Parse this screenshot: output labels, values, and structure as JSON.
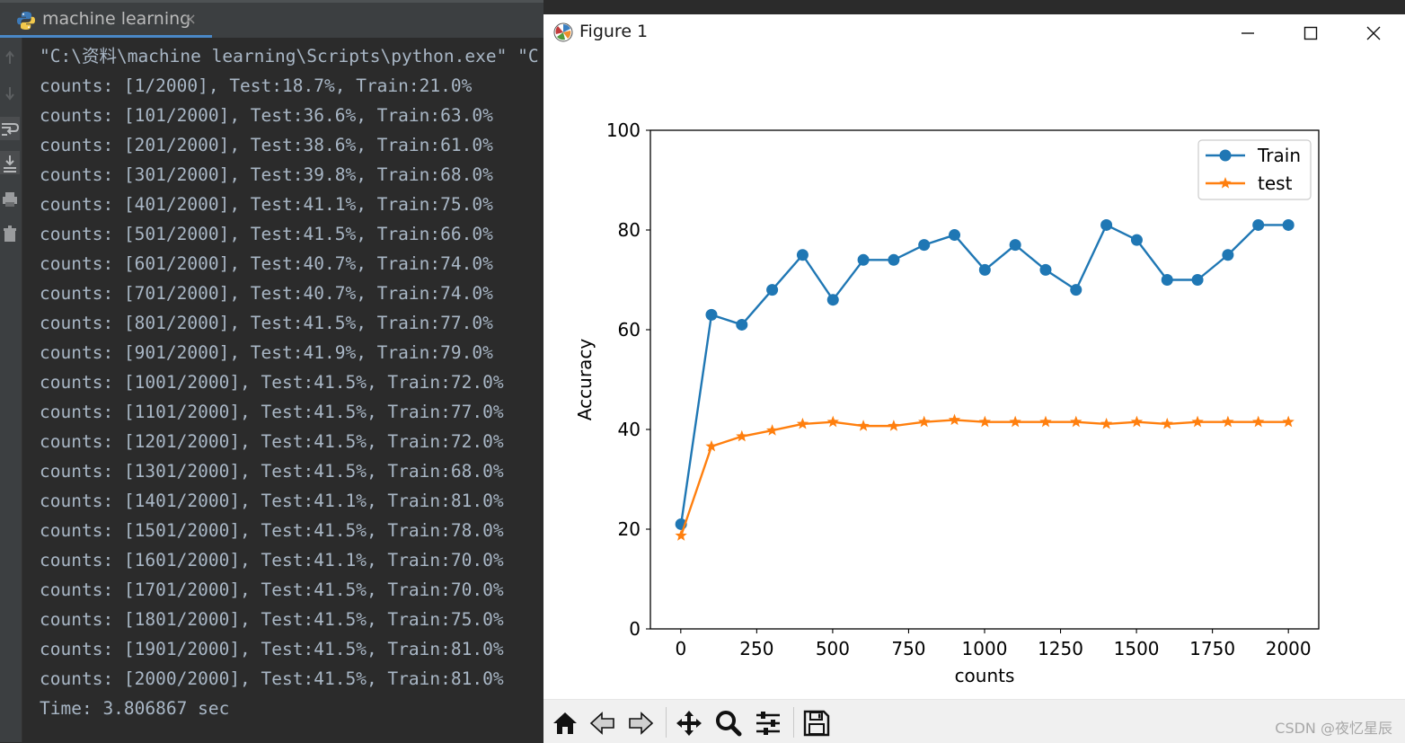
{
  "ide": {
    "tab_title": "machine learning",
    "close_glyph": "×",
    "console_lines": [
      "\"C:\\资料\\machine learning\\Scripts\\python.exe\" \"C",
      "counts: [1/2000], Test:18.7%, Train:21.0%",
      "counts: [101/2000], Test:36.6%, Train:63.0%",
      "counts: [201/2000], Test:38.6%, Train:61.0%",
      "counts: [301/2000], Test:39.8%, Train:68.0%",
      "counts: [401/2000], Test:41.1%, Train:75.0%",
      "counts: [501/2000], Test:41.5%, Train:66.0%",
      "counts: [601/2000], Test:40.7%, Train:74.0%",
      "counts: [701/2000], Test:40.7%, Train:74.0%",
      "counts: [801/2000], Test:41.5%, Train:77.0%",
      "counts: [901/2000], Test:41.9%, Train:79.0%",
      "counts: [1001/2000], Test:41.5%, Train:72.0%",
      "counts: [1101/2000], Test:41.5%, Train:77.0%",
      "counts: [1201/2000], Test:41.5%, Train:72.0%",
      "counts: [1301/2000], Test:41.5%, Train:68.0%",
      "counts: [1401/2000], Test:41.1%, Train:81.0%",
      "counts: [1501/2000], Test:41.5%, Train:78.0%",
      "counts: [1601/2000], Test:41.1%, Train:70.0%",
      "counts: [1701/2000], Test:41.5%, Train:70.0%",
      "counts: [1801/2000], Test:41.5%, Train:75.0%",
      "counts: [1901/2000], Test:41.5%, Train:81.0%",
      "counts: [2000/2000], Test:41.5%, Train:81.0%",
      "Time: 3.806867 sec"
    ],
    "gutter_icons": [
      "arrow-up-icon",
      "arrow-down-icon",
      "soft-wrap-icon",
      "scroll-to-end-icon",
      "print-icon",
      "trash-icon"
    ]
  },
  "figure": {
    "window_title": "Figure 1",
    "toolbar_icons": [
      "home-icon",
      "back-arrow-icon",
      "forward-arrow-icon",
      "pan-icon",
      "zoom-icon",
      "configure-subplots-icon",
      "save-icon"
    ],
    "watermark": "CSDN @夜忆星辰"
  },
  "colors": {
    "train": "#1f77b4",
    "test": "#ff7f0e",
    "console_text": "#a9b7c6",
    "ide_bg": "#2b2b2b",
    "tab_accent": "#4a88c7"
  },
  "chart_data": {
    "type": "line",
    "title": "",
    "xlabel": "counts",
    "ylabel": "Accuracy",
    "xlim": [
      -100,
      2100
    ],
    "ylim": [
      0,
      100
    ],
    "xticks": [
      0,
      250,
      500,
      750,
      1000,
      1250,
      1500,
      1750,
      2000
    ],
    "yticks": [
      0,
      20,
      40,
      60,
      80,
      100
    ],
    "x": [
      1,
      101,
      201,
      301,
      401,
      501,
      601,
      701,
      801,
      901,
      1001,
      1101,
      1201,
      1301,
      1401,
      1501,
      1601,
      1701,
      1801,
      1901,
      2000
    ],
    "series": [
      {
        "name": "Train",
        "marker": "o",
        "values": [
          21.0,
          63.0,
          61.0,
          68.0,
          75.0,
          66.0,
          74.0,
          74.0,
          77.0,
          79.0,
          72.0,
          77.0,
          72.0,
          68.0,
          81.0,
          78.0,
          70.0,
          70.0,
          75.0,
          81.0,
          81.0
        ]
      },
      {
        "name": "test",
        "marker": "*",
        "values": [
          18.7,
          36.6,
          38.6,
          39.8,
          41.1,
          41.5,
          40.7,
          40.7,
          41.5,
          41.9,
          41.5,
          41.5,
          41.5,
          41.5,
          41.1,
          41.5,
          41.1,
          41.5,
          41.5,
          41.5,
          41.5
        ]
      }
    ],
    "legend": "top-right",
    "grid": false
  }
}
